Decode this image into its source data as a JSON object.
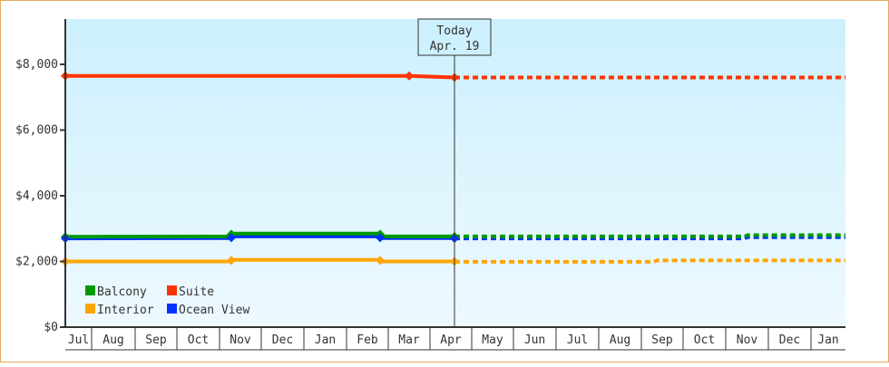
{
  "chart_data": {
    "type": "line",
    "title": "",
    "xlabel": "",
    "ylabel": "",
    "ylim": [
      0,
      9400
    ],
    "y_ticks": [
      {
        "value": 0,
        "label": "$0"
      },
      {
        "value": 2000,
        "label": "$2,000"
      },
      {
        "value": 4000,
        "label": "$4,000"
      },
      {
        "value": 6000,
        "label": "$6,000"
      },
      {
        "value": 8000,
        "label": "$8,000"
      }
    ],
    "categories": [
      "Jul",
      "Aug",
      "Sep",
      "Oct",
      "Nov",
      "Dec",
      "Jan",
      "Feb",
      "Mar",
      "Apr",
      "May",
      "Jun",
      "Jul",
      "Aug",
      "Sep",
      "Oct",
      "Nov",
      "Dec",
      "Jan"
    ],
    "today_marker": {
      "line1": "Today",
      "line2": "Apr. 19"
    },
    "legend": [
      {
        "name": "Balcony",
        "color": "#009a00"
      },
      {
        "name": "Suite",
        "color": "#ff3300"
      },
      {
        "name": "Interior",
        "color": "#ffa500"
      },
      {
        "name": "Ocean View",
        "color": "#0033ff"
      }
    ],
    "series": [
      {
        "name": "Suite",
        "color": "#ff3300",
        "points": [
          {
            "x": 71,
            "v": 7650
          },
          {
            "x": 450,
            "v": 7650
          },
          {
            "x": 500,
            "v": 7600
          }
        ],
        "forecast": [
          {
            "x": 500,
            "v": 7600
          },
          {
            "x": 931,
            "v": 7600
          }
        ]
      },
      {
        "name": "Balcony",
        "color": "#009a00",
        "points": [
          {
            "x": 71,
            "v": 2750
          },
          {
            "x": 254,
            "v": 2760
          },
          {
            "x": 255,
            "v": 2850
          },
          {
            "x": 418,
            "v": 2850
          },
          {
            "x": 419,
            "v": 2760
          },
          {
            "x": 500,
            "v": 2760
          }
        ],
        "forecast": [
          {
            "x": 500,
            "v": 2760
          },
          {
            "x": 820,
            "v": 2760
          },
          {
            "x": 823,
            "v": 2800
          },
          {
            "x": 931,
            "v": 2800
          }
        ]
      },
      {
        "name": "Ocean View",
        "color": "#0033ff",
        "points": [
          {
            "x": 71,
            "v": 2700
          },
          {
            "x": 254,
            "v": 2710
          },
          {
            "x": 255,
            "v": 2760
          },
          {
            "x": 418,
            "v": 2760
          },
          {
            "x": 419,
            "v": 2710
          },
          {
            "x": 500,
            "v": 2710
          }
        ],
        "forecast": [
          {
            "x": 500,
            "v": 2700
          },
          {
            "x": 820,
            "v": 2700
          },
          {
            "x": 823,
            "v": 2740
          },
          {
            "x": 931,
            "v": 2740
          }
        ]
      },
      {
        "name": "Interior",
        "color": "#ffa500",
        "points": [
          {
            "x": 71,
            "v": 2000
          },
          {
            "x": 254,
            "v": 2000
          },
          {
            "x": 255,
            "v": 2050
          },
          {
            "x": 418,
            "v": 2050
          },
          {
            "x": 419,
            "v": 2000
          },
          {
            "x": 500,
            "v": 2000
          }
        ],
        "forecast": [
          {
            "x": 500,
            "v": 1990
          },
          {
            "x": 720,
            "v": 1990
          },
          {
            "x": 723,
            "v": 2030
          },
          {
            "x": 931,
            "v": 2030
          }
        ]
      }
    ],
    "markers": [
      {
        "series": "Suite",
        "x": 71,
        "v": 7650
      },
      {
        "series": "Suite",
        "x": 450,
        "v": 7650
      },
      {
        "series": "Suite",
        "x": 500,
        "v": 7600
      },
      {
        "series": "Balcony",
        "x": 71,
        "v": 2750
      },
      {
        "series": "Balcony",
        "x": 254,
        "v": 2830
      },
      {
        "series": "Balcony",
        "x": 418,
        "v": 2830
      },
      {
        "series": "Balcony",
        "x": 500,
        "v": 2760
      },
      {
        "series": "Ocean View",
        "x": 71,
        "v": 2700
      },
      {
        "series": "Ocean View",
        "x": 254,
        "v": 2720
      },
      {
        "series": "Ocean View",
        "x": 418,
        "v": 2720
      },
      {
        "series": "Ocean View",
        "x": 500,
        "v": 2700
      },
      {
        "series": "Interior",
        "x": 71,
        "v": 2000
      },
      {
        "series": "Interior",
        "x": 254,
        "v": 2030
      },
      {
        "series": "Interior",
        "x": 418,
        "v": 2030
      },
      {
        "series": "Interior",
        "x": 500,
        "v": 2000
      }
    ],
    "grid": false,
    "legend_position": "bottom-left inside plot"
  }
}
